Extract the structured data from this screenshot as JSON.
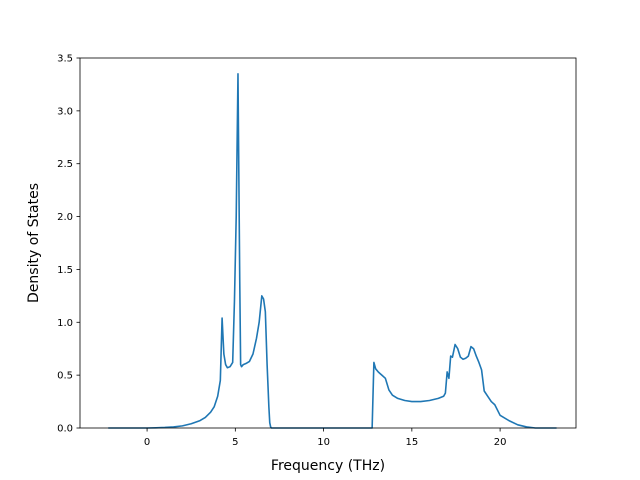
{
  "chart_data": {
    "type": "line",
    "title": "",
    "xlabel": "Frequency (THz)",
    "ylabel": "Density of States",
    "xlim": [
      -3.8,
      24.3
    ],
    "ylim": [
      0,
      3.5
    ],
    "xticks": [
      0,
      5,
      10,
      15,
      20
    ],
    "yticks": [
      0.0,
      0.5,
      1.0,
      1.5,
      2.0,
      2.5,
      3.0,
      3.5
    ],
    "xtick_labels": [
      "0",
      "5",
      "10",
      "15",
      "20"
    ],
    "ytick_labels": [
      "0.0",
      "0.5",
      "1.0",
      "1.5",
      "2.0",
      "2.5",
      "3.0",
      "3.5"
    ],
    "grid": false,
    "legend": "none",
    "series": [
      {
        "color": "#1f77b4",
        "x": [
          -2.2,
          -1.0,
          0.0,
          0.5,
          1.0,
          1.5,
          2.0,
          2.5,
          3.0,
          3.3,
          3.6,
          3.8,
          4.0,
          4.15,
          4.25,
          4.35,
          4.45,
          4.55,
          4.7,
          4.85,
          4.95,
          5.05,
          5.15,
          5.25,
          5.3,
          5.35,
          5.45,
          5.6,
          5.8,
          6.0,
          6.2,
          6.35,
          6.5,
          6.6,
          6.7,
          6.8,
          6.85,
          6.9,
          6.95,
          7.0,
          7.05,
          7.1,
          7.2,
          8.0,
          10.0,
          12.0,
          12.75,
          12.85,
          12.95,
          13.1,
          13.3,
          13.5,
          13.7,
          13.9,
          14.2,
          14.6,
          15.0,
          15.5,
          16.0,
          16.5,
          16.8,
          16.9,
          17.0,
          17.1,
          17.2,
          17.3,
          17.45,
          17.6,
          17.75,
          17.9,
          18.05,
          18.2,
          18.35,
          18.5,
          18.65,
          18.8,
          18.95,
          19.1,
          19.3,
          19.5,
          19.7,
          20.0,
          20.5,
          21.0,
          21.5,
          22.0,
          23.2
        ],
        "y": [
          0.0,
          0.0,
          0.0,
          0.002,
          0.005,
          0.01,
          0.02,
          0.04,
          0.07,
          0.1,
          0.15,
          0.2,
          0.3,
          0.45,
          1.04,
          0.7,
          0.6,
          0.57,
          0.58,
          0.62,
          1.2,
          2.0,
          3.35,
          1.4,
          0.6,
          0.58,
          0.6,
          0.61,
          0.63,
          0.7,
          0.85,
          1.0,
          1.25,
          1.22,
          1.1,
          0.6,
          0.4,
          0.2,
          0.05,
          0.01,
          0.0,
          0.0,
          0.0,
          0.0,
          0.0,
          0.0,
          0.0,
          0.62,
          0.56,
          0.53,
          0.5,
          0.47,
          0.36,
          0.31,
          0.28,
          0.26,
          0.25,
          0.25,
          0.26,
          0.28,
          0.3,
          0.33,
          0.53,
          0.47,
          0.68,
          0.67,
          0.79,
          0.75,
          0.67,
          0.65,
          0.66,
          0.68,
          0.77,
          0.75,
          0.68,
          0.62,
          0.55,
          0.35,
          0.3,
          0.25,
          0.22,
          0.12,
          0.07,
          0.03,
          0.01,
          0.0,
          0.0
        ]
      }
    ]
  }
}
